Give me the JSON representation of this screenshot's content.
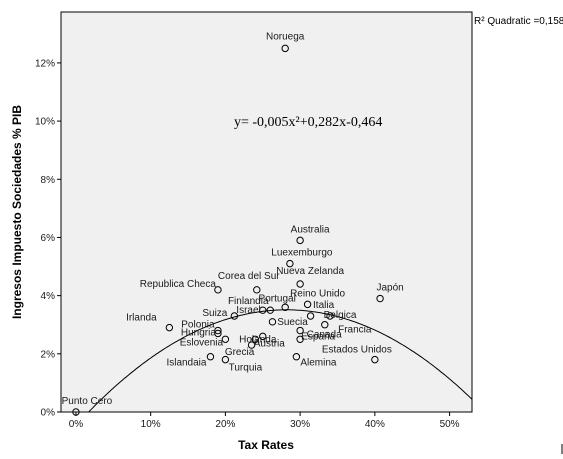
{
  "chart_data": {
    "type": "scatter",
    "xlabel": "Tax Rates",
    "ylabel": "Ingresos Impuesto Sociedades % PIB",
    "xlim": [
      -0.02,
      0.53
    ],
    "ylim": [
      0,
      0.1375
    ],
    "x_ticks": [
      0,
      0.1,
      0.2,
      0.3,
      0.4,
      0.5
    ],
    "x_tick_labels": [
      "0%",
      "10%",
      "20%",
      "30%",
      "40%",
      "50%"
    ],
    "y_ticks": [
      0,
      0.02,
      0.04,
      0.06,
      0.08,
      0.1,
      0.12
    ],
    "y_tick_labels": [
      "0%",
      "2%",
      "4%",
      "6%",
      "8%",
      "10%",
      "12%"
    ],
    "equation": "y= -0,005x²+0,282x-0,464",
    "r2_label": "R² Quadratic =0,158",
    "fit": {
      "type": "quadratic",
      "a": -0.005,
      "b": 0.282,
      "c": -0.464,
      "input_units": "percent"
    },
    "grid": false,
    "points": [
      {
        "label": "Noruega",
        "x": 0.28,
        "y": 0.125
      },
      {
        "label": "Australia",
        "x": 0.3,
        "y": 0.059
      },
      {
        "label": "Luexemburgo",
        "x": 0.2863,
        "y": 0.051
      },
      {
        "label": "Nueva Zelanda",
        "x": 0.3,
        "y": 0.044
      },
      {
        "label": "Japón",
        "x": 0.407,
        "y": 0.039
      },
      {
        "label": "Corea del Sur",
        "x": 0.242,
        "y": 0.042
      },
      {
        "label": "Republica Checa",
        "x": 0.19,
        "y": 0.042
      },
      {
        "label": "Reino Unido",
        "x": 0.31,
        "y": 0.037
      },
      {
        "label": "Finlandia",
        "x": 0.26,
        "y": 0.035
      },
      {
        "label": "Portugal",
        "x": 0.28,
        "y": 0.036
      },
      {
        "label": "Israel",
        "x": 0.25,
        "y": 0.035
      },
      {
        "label": "Suiza",
        "x": 0.212,
        "y": 0.033
      },
      {
        "label": "Italia",
        "x": 0.314,
        "y": 0.033
      },
      {
        "label": "Belgica",
        "x": 0.34,
        "y": 0.033
      },
      {
        "label": "Irlanda",
        "x": 0.125,
        "y": 0.029
      },
      {
        "label": "Polonia",
        "x": 0.19,
        "y": 0.028
      },
      {
        "label": "Suecia",
        "x": 0.263,
        "y": 0.031
      },
      {
        "label": "Francia",
        "x": 0.333,
        "y": 0.03
      },
      {
        "label": "Hungria",
        "x": 0.19,
        "y": 0.027
      },
      {
        "label": "Holanda",
        "x": 0.25,
        "y": 0.026
      },
      {
        "label": "Canada",
        "x": 0.3,
        "y": 0.028
      },
      {
        "label": "Eslovenia",
        "x": 0.2,
        "y": 0.025
      },
      {
        "label": "Austria",
        "x": 0.24,
        "y": 0.025
      },
      {
        "label": "España",
        "x": 0.3,
        "y": 0.025
      },
      {
        "label": "Grecia",
        "x": 0.235,
        "y": 0.023
      },
      {
        "label": "Islandaia",
        "x": 0.18,
        "y": 0.019
      },
      {
        "label": "Turquia",
        "x": 0.2,
        "y": 0.018
      },
      {
        "label": "Alemina",
        "x": 0.295,
        "y": 0.019
      },
      {
        "label": "Estados Unidos",
        "x": 0.4,
        "y": 0.018
      },
      {
        "label": "Punto Cero",
        "x": 0.0,
        "y": 0.0
      }
    ]
  }
}
